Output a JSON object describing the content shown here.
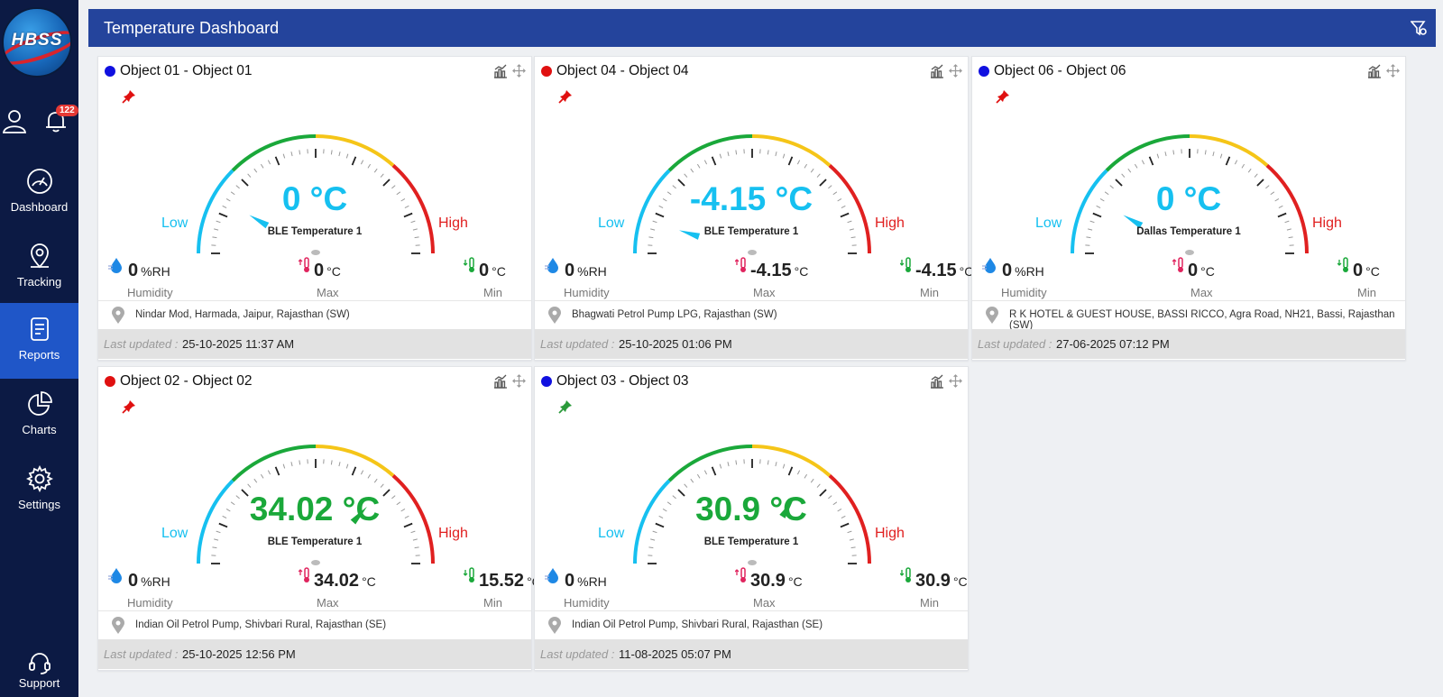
{
  "app": {
    "logo_text": "HBSS",
    "notification_count": "122"
  },
  "nav": {
    "items": [
      {
        "label": "Dashboard",
        "icon": "speedometer-icon"
      },
      {
        "label": "Tracking",
        "icon": "map-pin-icon"
      },
      {
        "label": "Reports",
        "icon": "document-icon"
      },
      {
        "label": "Charts",
        "icon": "pie-chart-icon"
      },
      {
        "label": "Settings",
        "icon": "gear-icon"
      }
    ],
    "active": "Reports",
    "support_label": "Support"
  },
  "header": {
    "title": "Temperature Dashboard"
  },
  "common": {
    "low_label": "Low",
    "high_label": "High",
    "humidity_caption": "Humidity",
    "max_caption": "Max",
    "min_caption": "Min",
    "humidity_unit": "%RH",
    "temp_unit": "°C",
    "updated_label": "Last updated :"
  },
  "colors": {
    "low": "#16c0f0",
    "normal": "#1aa83a",
    "warm": "#f5c518",
    "high": "#e02020",
    "dot_blue": "#1010e0",
    "dot_red": "#e01010"
  },
  "cards": [
    {
      "title": "Object 01 - Object 01",
      "status_color": "#1010e0",
      "pin_color": "#e01010",
      "temp_value": 0,
      "temp_text": "0 °C",
      "value_color": "#16c0f0",
      "sensor": "BLE Temperature 1",
      "humidity": "0",
      "max": "0",
      "min": "0",
      "location": "Nindar Mod, Harmada, Jaipur, Rajasthan (SW)",
      "updated": "25-10-2025 11:37 AM"
    },
    {
      "title": "Object 04 - Object 04",
      "status_color": "#e01010",
      "pin_color": "#e01010",
      "temp_value": -4.15,
      "temp_text": "-4.15 °C",
      "value_color": "#16c0f0",
      "sensor": "BLE Temperature 1",
      "humidity": "0",
      "max": "-4.15",
      "min": "-4.15",
      "location": "Bhagwati Petrol Pump LPG, Rajasthan (SW)",
      "updated": "25-10-2025 01:06 PM"
    },
    {
      "title": "Object 06 - Object 06",
      "status_color": "#1010e0",
      "pin_color": "#e01010",
      "temp_value": 0,
      "temp_text": "0 °C",
      "value_color": "#16c0f0",
      "sensor": "Dallas Temperature 1",
      "humidity": "0",
      "max": "0",
      "min": "0",
      "location": "R K HOTEL & GUEST HOUSE, BASSI RICCO, Agra Road, NH21, Bassi, Rajasthan (SW)",
      "updated": "27-06-2025 07:12 PM"
    },
    {
      "title": "Object 02 - Object 02",
      "status_color": "#e01010",
      "pin_color": "#e01010",
      "temp_value": 34.02,
      "temp_text": "34.02 °C",
      "value_color": "#1aa83a",
      "sensor": "BLE Temperature 1",
      "humidity": "0",
      "max": "34.02",
      "min": "15.52",
      "location": "Indian Oil Petrol Pump, Shivbari Rural, Rajasthan (SE)",
      "updated": "25-10-2025 12:56 PM"
    },
    {
      "title": "Object 03 - Object 03",
      "status_color": "#1010e0",
      "pin_color": "#2a9a3a",
      "temp_value": 30.9,
      "temp_text": "30.9 °C",
      "value_color": "#1aa83a",
      "sensor": "BLE Temperature 1",
      "humidity": "0",
      "max": "30.9",
      "min": "30.9",
      "location": "Indian Oil Petrol Pump, Shivbari Rural, Rajasthan (SE)",
      "updated": "11-08-2025 05:07 PM"
    }
  ]
}
